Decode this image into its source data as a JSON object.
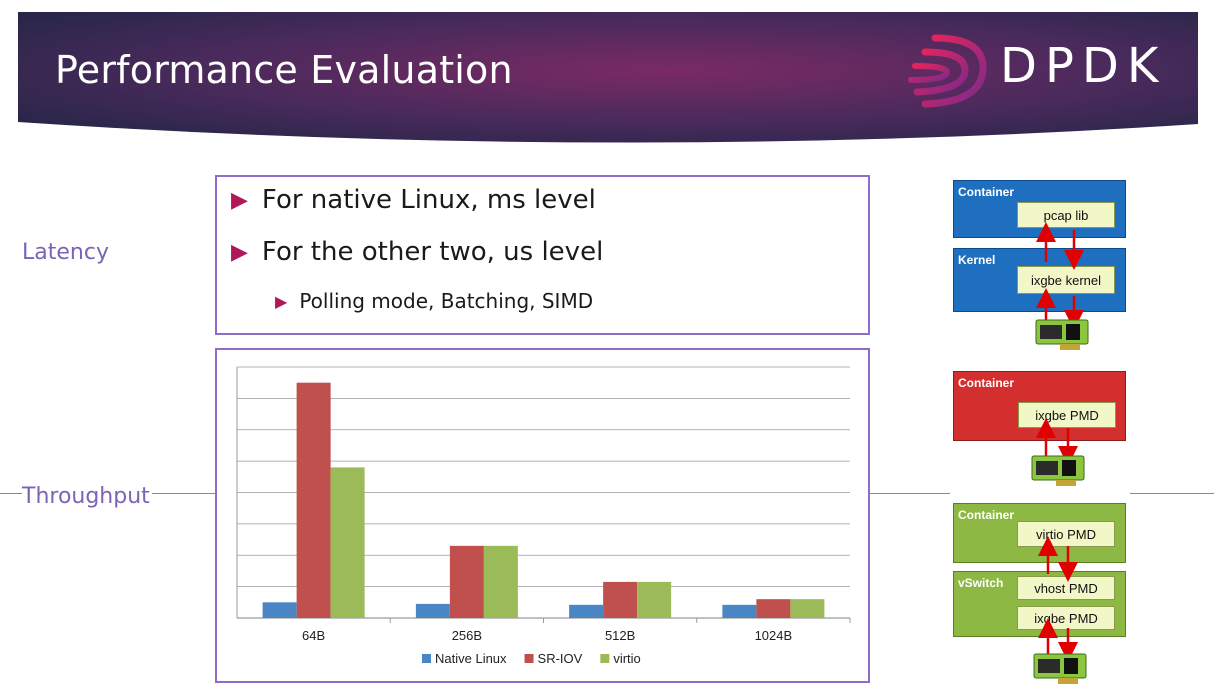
{
  "header": {
    "title": "Performance Evaluation",
    "logo_text": "DPDK"
  },
  "side_labels": {
    "latency": "Latency",
    "throughput": "Throughput"
  },
  "bullets": {
    "native": "For native Linux, ms level",
    "other": "For the other two, us level",
    "sub": "Polling mode, Batching, SIMD"
  },
  "chart_data": {
    "type": "bar",
    "categories": [
      "64B",
      "256B",
      "512B",
      "1024B"
    ],
    "series": [
      {
        "name": "Native Linux",
        "values": [
          0.5,
          0.45,
          0.42,
          0.42
        ],
        "color": "#4a86c5"
      },
      {
        "name": "SR-IOV",
        "values": [
          7.5,
          2.3,
          1.15,
          0.6
        ],
        "color": "#c0504d"
      },
      {
        "name": "virtio",
        "values": [
          4.8,
          2.3,
          1.15,
          0.6
        ],
        "color": "#9bbb59"
      }
    ],
    "ylim": [
      0,
      8
    ],
    "grid": true,
    "legend": "bottom"
  },
  "diagrams": {
    "d1": {
      "container_label": "Container",
      "app_label": "pcap lib",
      "kernel_label": "Kernel",
      "driver_label": "ixgbe kernel"
    },
    "d2": {
      "container_label": "Container",
      "driver_label": "ixgbe PMD"
    },
    "d3": {
      "container_label": "Container",
      "app_label": "virtio PMD",
      "vswitch_label": "vSwitch",
      "vhost_label": "vhost  PMD",
      "driver_label": "ixgbe  PMD"
    }
  },
  "colors": {
    "accent": "#b0185a",
    "frame": "#8e6cc8",
    "blue_panel": "#1f6fc0",
    "red_panel": "#d32f2f",
    "green_panel": "#8db843"
  }
}
